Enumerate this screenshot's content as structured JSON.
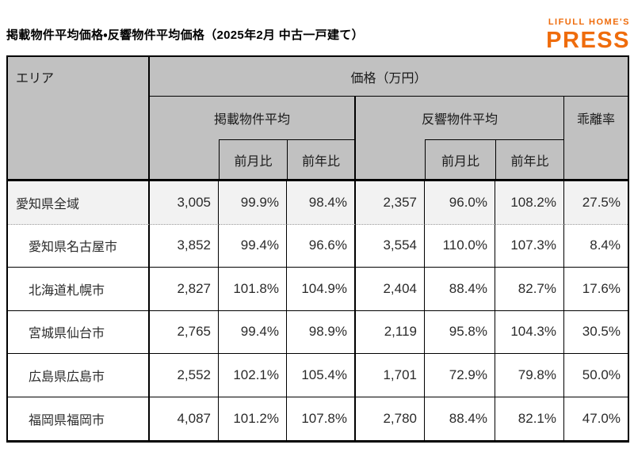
{
  "title": "掲載物件平均価格・反響物件平均価格（2025年2月 中古一戸建て）",
  "logo": {
    "line1": "LIFULL HOME'S",
    "line2": "PRESS",
    "brand_color": "#ef6c0c"
  },
  "table": {
    "header": {
      "area": "エリア",
      "price_unit": "価格（万円）",
      "listing_avg": "掲載物件平均",
      "response_avg": "反響物件平均",
      "deviation_rate": "乖離率",
      "mom": "前月比",
      "yoy": "前年比"
    },
    "colors": {
      "header_bg": "#c1c1c1",
      "first_row_bg": "#f2f2f2",
      "border": "#000000"
    }
  },
  "chart_data": {
    "type": "table",
    "title": "掲載物件平均価格・反響物件平均価格（2025年2月 中古一戸建て）",
    "columns": [
      "エリア",
      "掲載物件平均 価格（万円）",
      "掲載物件平均 前月比",
      "掲載物件平均 前年比",
      "反響物件平均 価格（万円）",
      "反響物件平均 前月比",
      "反響物件平均 前年比",
      "乖離率"
    ],
    "rows": [
      [
        "愛知県全域",
        "3,005",
        "99.9%",
        "98.4%",
        "2,357",
        "96.0%",
        "108.2%",
        "27.5%"
      ],
      [
        "愛知県名古屋市",
        "3,852",
        "99.4%",
        "96.6%",
        "3,554",
        "110.0%",
        "107.3%",
        "8.4%"
      ],
      [
        "北海道札幌市",
        "2,827",
        "101.8%",
        "104.9%",
        "2,404",
        "88.4%",
        "82.7%",
        "17.6%"
      ],
      [
        "宮城県仙台市",
        "2,765",
        "99.4%",
        "98.9%",
        "2,119",
        "95.8%",
        "104.3%",
        "30.5%"
      ],
      [
        "広島県広島市",
        "2,552",
        "102.1%",
        "105.4%",
        "1,701",
        "72.9%",
        "79.8%",
        "50.0%"
      ],
      [
        "福岡県福岡市",
        "4,087",
        "101.2%",
        "107.8%",
        "2,780",
        "88.4%",
        "82.1%",
        "47.0%"
      ]
    ]
  }
}
